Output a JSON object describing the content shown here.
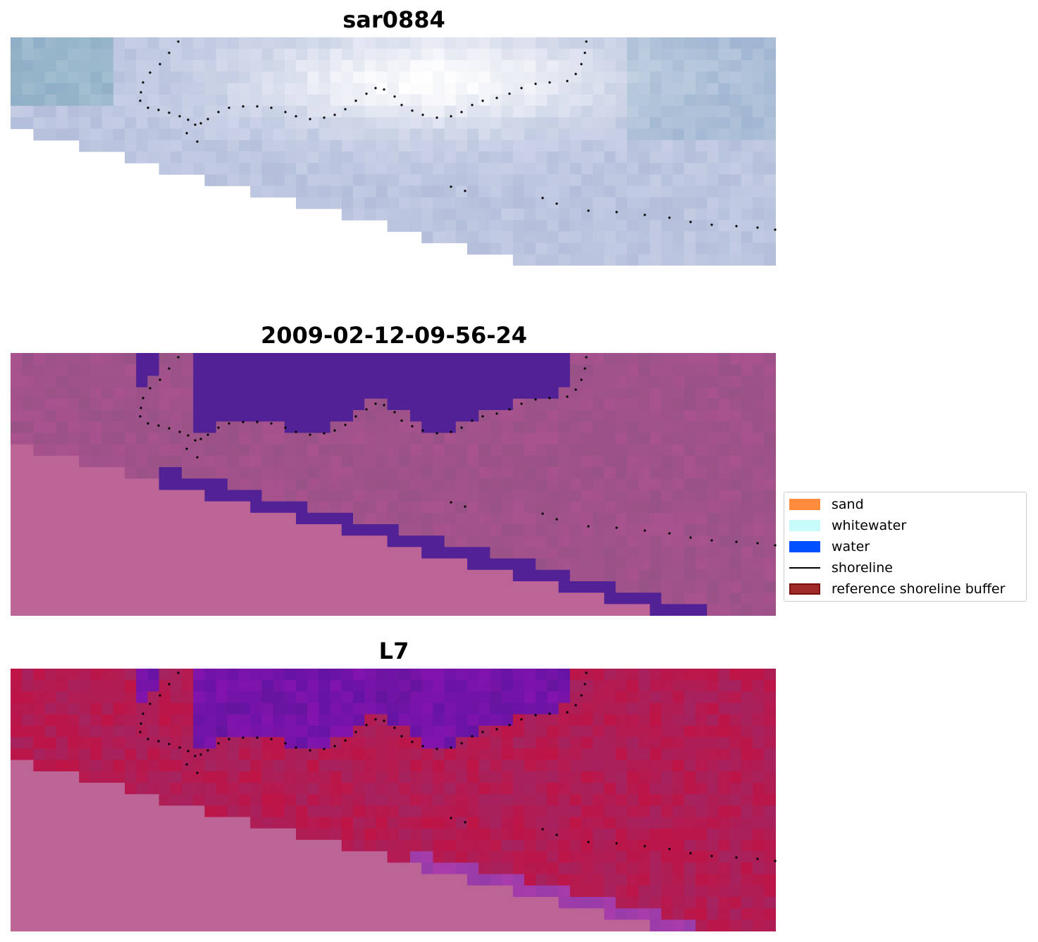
{
  "panels": [
    {
      "title": "sar0884",
      "kind": "rgb"
    },
    {
      "title": "2009-02-12-09-56-24",
      "kind": "classified"
    },
    {
      "title": "L7",
      "kind": "index"
    }
  ],
  "legend": {
    "items": [
      {
        "label": "sand",
        "color": "#ff8c3c",
        "type": "patch"
      },
      {
        "label": "whitewater",
        "color": "#c8fcfc",
        "type": "patch"
      },
      {
        "label": "water",
        "color": "#0050ff",
        "type": "patch"
      },
      {
        "label": "shoreline",
        "color": "#000000",
        "type": "line"
      },
      {
        "label": "reference shoreline buffer",
        "color": "#a02a2a",
        "type": "patch"
      }
    ]
  },
  "colors": {
    "nodata": "#bc6496",
    "water_class": "#522196",
    "land_class": "#b05c94",
    "index_high": "#c2154a",
    "index_low": "#5a10a8",
    "rgb_sky": "#b6bfdc",
    "rgb_white": "#f3f0f8",
    "shoreline": "#000000"
  }
}
